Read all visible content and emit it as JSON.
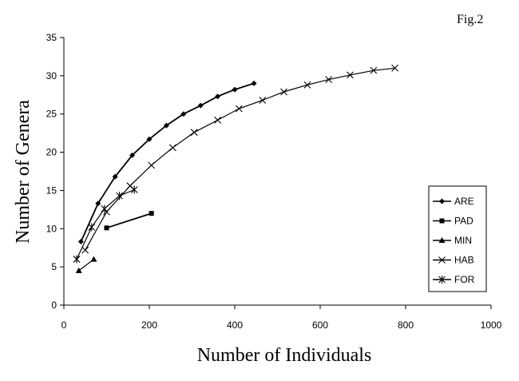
{
  "chart_data": {
    "type": "line",
    "figure_label": "Fig.2",
    "xlabel": "Number of Individuals",
    "ylabel": "Number of Genera",
    "xlim": [
      0,
      1000
    ],
    "ylim": [
      0,
      35
    ],
    "xticks": [
      0,
      200,
      400,
      600,
      800,
      1000
    ],
    "yticks": [
      0,
      5,
      10,
      15,
      20,
      25,
      30,
      35
    ],
    "grid": false,
    "legend_position": "right",
    "series": [
      {
        "name": "ARE",
        "marker": "diamond",
        "x": [
          40,
          80,
          120,
          160,
          200,
          240,
          280,
          320,
          360,
          400,
          445
        ],
        "y": [
          8.3,
          13.3,
          16.8,
          19.6,
          21.7,
          23.5,
          25.0,
          26.1,
          27.3,
          28.2,
          29.0
        ]
      },
      {
        "name": "PAD",
        "marker": "square",
        "x": [
          100,
          205
        ],
        "y": [
          10.1,
          12.0
        ]
      },
      {
        "name": "MIN",
        "marker": "triangle",
        "x": [
          35,
          70
        ],
        "y": [
          4.5,
          6.0
        ]
      },
      {
        "name": "HAB",
        "marker": "x",
        "x": [
          50,
          100,
          155,
          205,
          255,
          305,
          360,
          410,
          465,
          515,
          570,
          620,
          670,
          725,
          775
        ],
        "y": [
          7.2,
          12.2,
          15.6,
          18.3,
          20.6,
          22.6,
          24.2,
          25.7,
          26.8,
          27.9,
          28.8,
          29.5,
          30.1,
          30.7,
          31.0
        ]
      },
      {
        "name": "FOR",
        "marker": "asterisk",
        "x": [
          30,
          65,
          95,
          130,
          165
        ],
        "y": [
          6.0,
          10.2,
          12.6,
          14.3,
          15.1
        ]
      }
    ]
  }
}
